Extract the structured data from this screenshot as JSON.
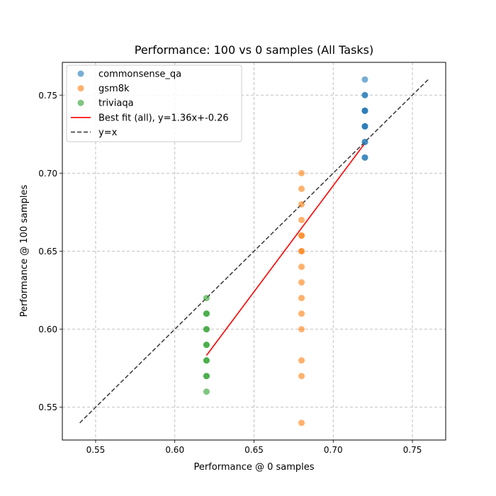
{
  "chart_data": {
    "type": "scatter",
    "title": "Performance: 100 vs 0 samples (All Tasks)",
    "xlabel": "Performance @ 0 samples",
    "ylabel": "Performance @ 100 samples",
    "xlim": [
      0.529,
      0.771
    ],
    "ylim": [
      0.529,
      0.771
    ],
    "xticks": [
      0.55,
      0.6,
      0.65,
      0.7,
      0.75
    ],
    "yticks": [
      0.55,
      0.6,
      0.65,
      0.7,
      0.75
    ],
    "xtick_labels": [
      "0.55",
      "0.60",
      "0.65",
      "0.70",
      "0.75"
    ],
    "ytick_labels": [
      "0.55",
      "0.60",
      "0.65",
      "0.70",
      "0.75"
    ],
    "grid": true,
    "legend_position": "upper-left",
    "series": [
      {
        "name": "commonsense_qa",
        "color": "#1f77b4",
        "points": [
          [
            0.72,
            0.76
          ],
          [
            0.72,
            0.75
          ],
          [
            0.72,
            0.75
          ],
          [
            0.72,
            0.74
          ],
          [
            0.72,
            0.74
          ],
          [
            0.72,
            0.74
          ],
          [
            0.72,
            0.73
          ],
          [
            0.72,
            0.73
          ],
          [
            0.72,
            0.73
          ],
          [
            0.72,
            0.72
          ],
          [
            0.72,
            0.72
          ],
          [
            0.72,
            0.71
          ],
          [
            0.72,
            0.71
          ]
        ]
      },
      {
        "name": "gsm8k",
        "color": "#ff7f0e",
        "points": [
          [
            0.68,
            0.7
          ],
          [
            0.68,
            0.69
          ],
          [
            0.68,
            0.68
          ],
          [
            0.68,
            0.67
          ],
          [
            0.68,
            0.66
          ],
          [
            0.68,
            0.66
          ],
          [
            0.68,
            0.65
          ],
          [
            0.68,
            0.65
          ],
          [
            0.68,
            0.64
          ],
          [
            0.68,
            0.63
          ],
          [
            0.68,
            0.62
          ],
          [
            0.68,
            0.61
          ],
          [
            0.68,
            0.6
          ],
          [
            0.68,
            0.58
          ],
          [
            0.68,
            0.57
          ],
          [
            0.68,
            0.54
          ]
        ]
      },
      {
        "name": "triviaqa",
        "color": "#2ca02c",
        "points": [
          [
            0.62,
            0.62
          ],
          [
            0.62,
            0.61
          ],
          [
            0.62,
            0.61
          ],
          [
            0.62,
            0.6
          ],
          [
            0.62,
            0.6
          ],
          [
            0.62,
            0.59
          ],
          [
            0.62,
            0.59
          ],
          [
            0.62,
            0.58
          ],
          [
            0.62,
            0.58
          ],
          [
            0.62,
            0.57
          ],
          [
            0.62,
            0.57
          ],
          [
            0.62,
            0.56
          ]
        ]
      }
    ],
    "lines": [
      {
        "name": "Best fit (all), y=1.36x+-0.26",
        "color": "#ff0000",
        "dash": "solid",
        "x": [
          0.62,
          0.72
        ],
        "y": [
          0.5832,
          0.7192
        ]
      },
      {
        "name": "y=x",
        "color": "#404040",
        "dash": "dashed",
        "x": [
          0.54,
          0.76
        ],
        "y": [
          0.54,
          0.76
        ]
      }
    ]
  }
}
